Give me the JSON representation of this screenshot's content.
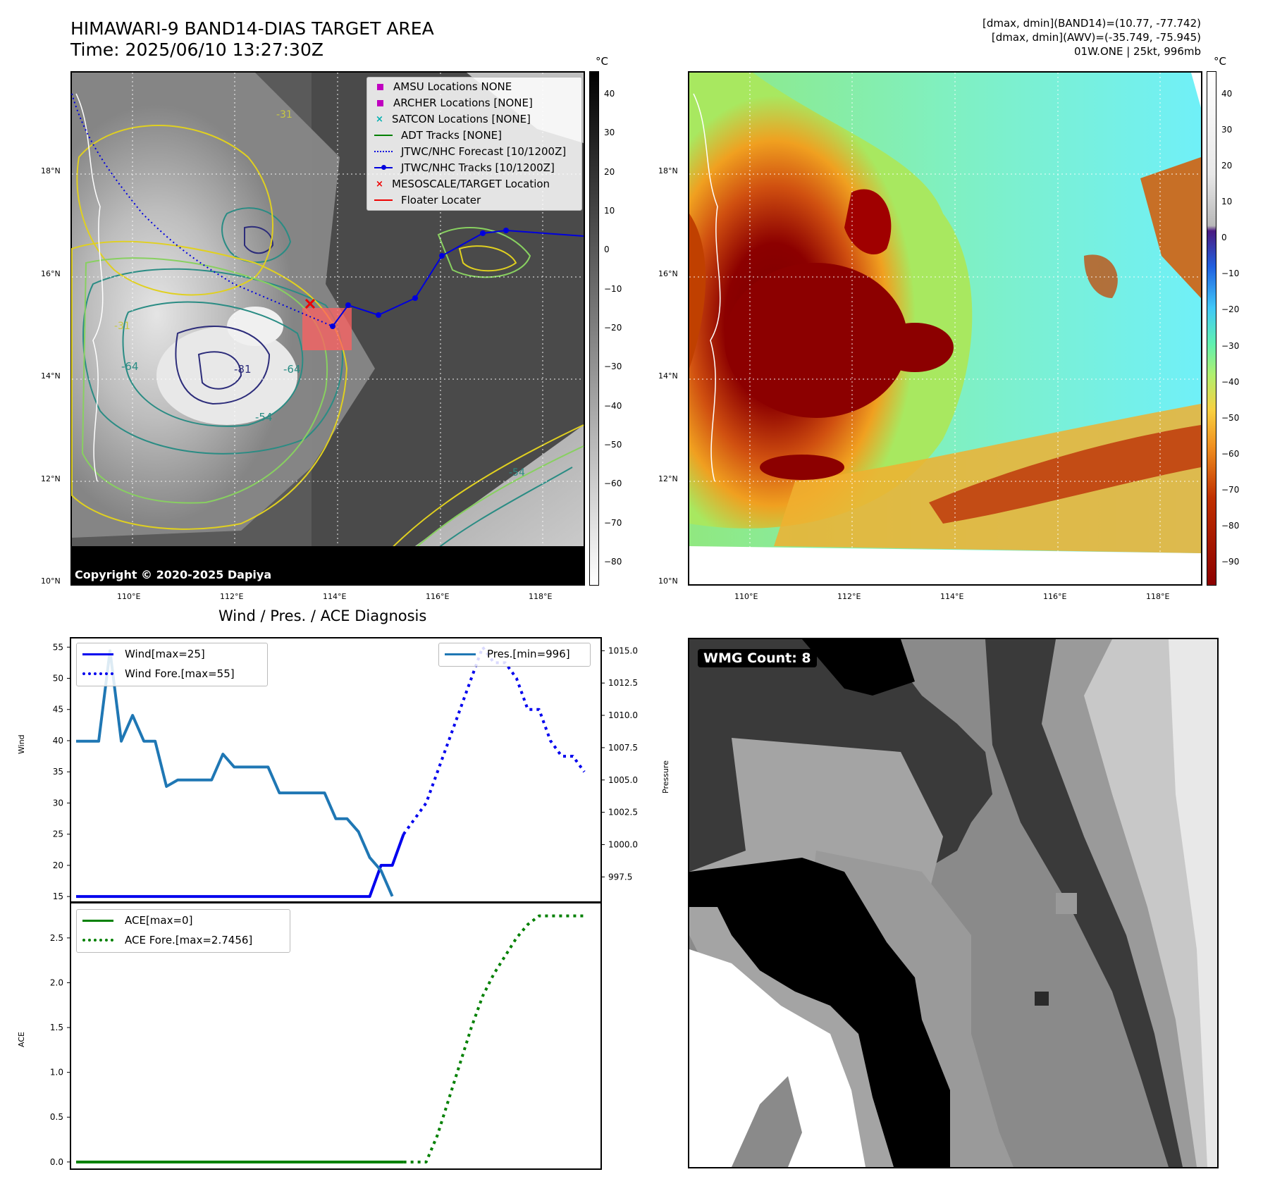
{
  "header": {
    "title_line1": "HIMAWARI-9 BAND14-DIAS TARGET AREA",
    "title_line2": "Time: 2025/06/10 13:27:30Z",
    "info_line1": "[dmax, dmin](BAND14)=(10.77, -77.742)",
    "info_line2": "[dmax, dmin](AWV)=(-35.749, -75.945)",
    "info_line3": "01W.ONE | 25kt, 996mb"
  },
  "map_axes": {
    "lat_labels": [
      "18°N",
      "16°N",
      "14°N",
      "12°N",
      "10°N"
    ],
    "lon_labels": [
      "110°E",
      "112°E",
      "114°E",
      "116°E",
      "118°E"
    ]
  },
  "ir_panel": {
    "copyright": "Copyright © 2020-2025 Dapiya",
    "contour_labels": [
      "-31",
      "-54",
      "-64",
      "-81",
      "-31",
      "-64",
      "-54"
    ],
    "colorbar": {
      "unit": "°C",
      "ticks": [
        "40",
        "30",
        "20",
        "10",
        "0",
        "−10",
        "−20",
        "−30",
        "−40",
        "−50",
        "−60",
        "−70",
        "−80"
      ]
    },
    "legend": [
      {
        "label": "AMSU Locations NONE",
        "marker": "square",
        "color": "#c000c0"
      },
      {
        "label": "ARCHER Locations [NONE]",
        "marker": "square",
        "color": "#c000c0"
      },
      {
        "label": "SATCON Locations [NONE]",
        "marker": "x",
        "color": "#00b0b0"
      },
      {
        "label": "ADT Tracks [NONE]",
        "marker": "line",
        "color": "#008000"
      },
      {
        "label": "JTWC/NHC Forecast [10/1200Z]",
        "marker": "dotted",
        "color": "#0000dd"
      },
      {
        "label": "JTWC/NHC Tracks [10/1200Z]",
        "marker": "line-dot",
        "color": "#0000dd"
      },
      {
        "label": "MESOSCALE/TARGET Location",
        "marker": "x",
        "color": "#ee0000"
      },
      {
        "label": "Floater Locater",
        "marker": "line",
        "color": "#ee0000"
      }
    ]
  },
  "awv_panel": {
    "colorbar": {
      "unit": "°C",
      "ticks": [
        "40",
        "30",
        "20",
        "10",
        "0",
        "−10",
        "−20",
        "−30",
        "−40",
        "−50",
        "−60",
        "−70",
        "−80",
        "−90"
      ]
    }
  },
  "wmg_panel": {
    "label": "WMG Count: 8"
  },
  "chart_data": [
    {
      "type": "line",
      "title": "Wind / Pres. / ACE Diagnosis",
      "ylabel": "Wind",
      "y2label": "Pressure",
      "ylim": [
        14,
        56.5
      ],
      "y2lim": [
        995.5,
        1016
      ],
      "yticks": [
        "55",
        "50",
        "45",
        "40",
        "35",
        "30",
        "25",
        "20",
        "15"
      ],
      "y2ticks": [
        "1015.0",
        "1012.5",
        "1010.0",
        "1007.5",
        "1005.0",
        "1002.5",
        "1000.0",
        "997.5"
      ],
      "legend_left": [
        "Wind[max=25]",
        "Wind Fore.[max=55]"
      ],
      "legend_right": [
        "Pres.[min=996]"
      ],
      "series": [
        {
          "name": "Wind[max=25]",
          "axis": "left",
          "color": "#0000ee",
          "style": "solid",
          "values": [
            [
              0,
              15
            ],
            [
              1,
              15
            ],
            [
              2,
              15
            ],
            [
              3,
              15
            ],
            [
              4,
              15
            ],
            [
              5,
              15
            ],
            [
              6,
              15
            ],
            [
              7,
              15
            ],
            [
              8,
              15
            ],
            [
              9,
              15
            ],
            [
              10,
              15
            ],
            [
              11,
              15
            ],
            [
              12,
              15
            ],
            [
              13,
              15
            ],
            [
              14,
              15
            ],
            [
              15,
              15
            ],
            [
              16,
              15
            ],
            [
              17,
              15
            ],
            [
              18,
              15
            ],
            [
              19,
              15
            ],
            [
              20,
              15
            ],
            [
              21,
              15
            ],
            [
              22,
              15
            ],
            [
              23,
              15
            ],
            [
              24,
              15
            ],
            [
              25,
              15
            ],
            [
              26,
              15
            ],
            [
              27,
              20
            ],
            [
              28,
              20
            ],
            [
              29,
              25
            ]
          ]
        },
        {
          "name": "Wind Fore.[max=55]",
          "axis": "left",
          "color": "#0000ee",
          "style": "dotted",
          "values": [
            [
              29,
              25
            ],
            [
              31,
              30
            ],
            [
              33,
              40
            ],
            [
              35,
              50
            ],
            [
              36,
              55
            ],
            [
              37,
              52.5
            ],
            [
              38,
              52.5
            ],
            [
              39,
              50
            ],
            [
              40,
              45
            ],
            [
              41,
              45
            ],
            [
              42,
              40
            ],
            [
              43,
              37.5
            ],
            [
              44,
              37.5
            ],
            [
              45,
              35
            ]
          ]
        },
        {
          "name": "Pres.[min=996]",
          "axis": "right",
          "color": "#1f77b4",
          "style": "solid",
          "values": [
            [
              0,
              1008
            ],
            [
              2,
              1008
            ],
            [
              3,
              1015
            ],
            [
              4,
              1008
            ],
            [
              5,
              1010
            ],
            [
              6,
              1008
            ],
            [
              7,
              1008
            ],
            [
              8,
              1004.5
            ],
            [
              9,
              1005
            ],
            [
              10,
              1005
            ],
            [
              11,
              1005
            ],
            [
              12,
              1005
            ],
            [
              13,
              1007
            ],
            [
              14,
              1006
            ],
            [
              15,
              1006
            ],
            [
              16,
              1006
            ],
            [
              17,
              1006
            ],
            [
              18,
              1004
            ],
            [
              19,
              1004
            ],
            [
              20,
              1004
            ],
            [
              21,
              1004
            ],
            [
              22,
              1004
            ],
            [
              23,
              1002
            ],
            [
              24,
              1002
            ],
            [
              25,
              1001
            ],
            [
              26,
              999
            ],
            [
              27,
              998
            ],
            [
              28,
              996
            ]
          ]
        }
      ]
    },
    {
      "type": "line",
      "ylabel": "ACE",
      "ylim": [
        -0.08,
        2.9
      ],
      "yticks": [
        "2.5",
        "2.0",
        "1.5",
        "1.0",
        "0.5",
        "0.0"
      ],
      "legend": [
        "ACE[max=0]",
        "ACE Fore.[max=2.7456]"
      ],
      "series": [
        {
          "name": "ACE[max=0]",
          "color": "#008000",
          "style": "solid",
          "values": [
            [
              0,
              0
            ],
            [
              29,
              0
            ]
          ]
        },
        {
          "name": "ACE Fore.[max=2.7456]",
          "color": "#008000",
          "style": "dotted",
          "values": [
            [
              29,
              0
            ],
            [
              31,
              0
            ],
            [
              32,
              0.3
            ],
            [
              33,
              0.7
            ],
            [
              34,
              1.1
            ],
            [
              35,
              1.5
            ],
            [
              36,
              1.85
            ],
            [
              37,
              2.1
            ],
            [
              38,
              2.3
            ],
            [
              39,
              2.5
            ],
            [
              40,
              2.65
            ],
            [
              41,
              2.7456
            ],
            [
              45,
              2.7456
            ]
          ]
        }
      ]
    }
  ]
}
